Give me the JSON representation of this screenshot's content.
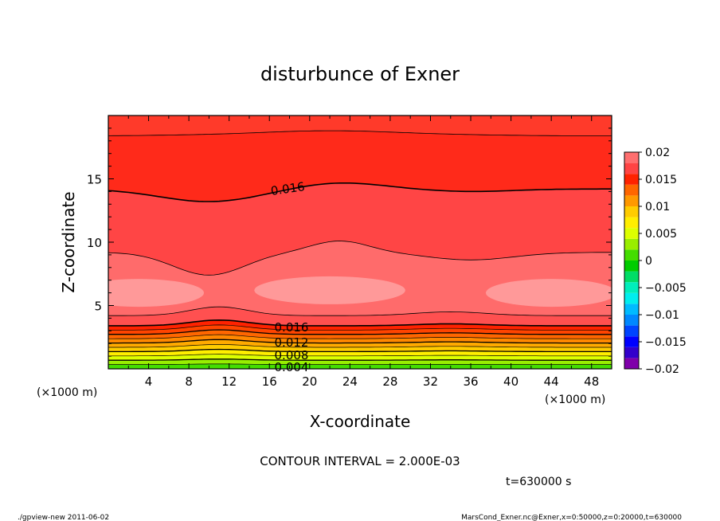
{
  "chart_data": {
    "type": "heatmap",
    "title": "disturbunce of Exner",
    "xlabel": "X-coordinate",
    "ylabel": "Z-coordinate",
    "x_unit": "(×1000 m)",
    "y_unit": "(×1000 m)",
    "xlim": [
      0,
      50
    ],
    "ylim": [
      0,
      20
    ],
    "x_ticks": [
      "4",
      "8",
      "12",
      "16",
      "20",
      "24",
      "28",
      "32",
      "36",
      "40",
      "44",
      "48"
    ],
    "y_ticks": [
      "5",
      "10",
      "15"
    ],
    "colorbar": {
      "ticks": [
        "0.02",
        "0.015",
        "0.01",
        "0.005",
        "0",
        "−0.005",
        "−0.01",
        "−0.015",
        "−0.02"
      ],
      "levels": [
        -0.02,
        -0.018,
        -0.016,
        -0.014,
        -0.012,
        -0.01,
        -0.008,
        -0.006,
        -0.004,
        -0.002,
        0,
        0.002,
        0.004,
        0.006,
        0.008,
        0.01,
        0.012,
        0.014,
        0.016,
        0.018,
        0.02
      ],
      "colors": [
        "#7f00aa",
        "#3300cc",
        "#0000ff",
        "#0044ff",
        "#0088ff",
        "#00bbff",
        "#00eeee",
        "#00eebb",
        "#00dd66",
        "#00cc00",
        "#44dd00",
        "#99ee00",
        "#ddff00",
        "#ffee00",
        "#ffcc00",
        "#ff9900",
        "#ff6600",
        "#ff2200",
        "#ff4444",
        "#ff6f6f",
        "#ff9999"
      ]
    },
    "contour_interval": "CONTOUR INTERVAL = 2.000E-03",
    "contour_labels": [
      "0.016",
      "0.016",
      "0.012",
      "0.008",
      "0.004"
    ],
    "layers_top_to_bottom": [
      {
        "z_range": [
          18.5,
          20
        ],
        "value_band": [
          0.014,
          0.016
        ]
      },
      {
        "z_range": [
          14.2,
          18.5
        ],
        "value_band": [
          0.016,
          0.018
        ]
      },
      {
        "z_range": [
          9.2,
          14.2
        ],
        "value_band": [
          0.018,
          0.02
        ]
      },
      {
        "z_range": [
          4.2,
          9.2
        ],
        "value_band": [
          0.02,
          0.022
        ]
      },
      {
        "z_range": [
          3.4,
          4.2
        ],
        "value_band": [
          0.018,
          0.02
        ]
      },
      {
        "z_range": [
          0,
          3.4
        ],
        "value_band": [
          0.002,
          0.016
        ]
      }
    ],
    "time_label": "t=630000  s"
  },
  "footer": {
    "left": "./gpview-new   2011-06-02",
    "right": "MarsCond_Exner.nc@Exner,x=0:50000,z=0:20000,t=630000"
  }
}
